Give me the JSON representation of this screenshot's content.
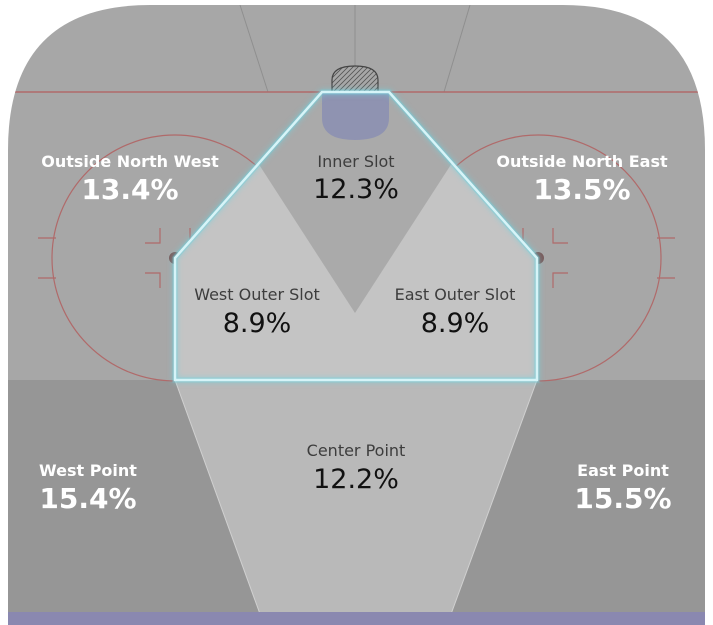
{
  "zones": {
    "outside_north_west": {
      "label": "Outside North West",
      "value": "13.4%"
    },
    "inner_slot": {
      "label": "Inner Slot",
      "value": "12.3%"
    },
    "outside_north_east": {
      "label": "Outside North East",
      "value": "13.5%"
    },
    "west_outer_slot": {
      "label": "West Outer Slot",
      "value": "8.9%"
    },
    "east_outer_slot": {
      "label": "East Outer Slot",
      "value": "8.9%"
    },
    "center_point": {
      "label": "Center Point",
      "value": "12.2%"
    },
    "west_point": {
      "label": "West Point",
      "value": "15.4%"
    },
    "east_point": {
      "label": "East Point",
      "value": "15.5%"
    }
  },
  "colors": {
    "rink_upper": "#a7a7a7",
    "rink_lower": "#969696",
    "slot_fill": "#c4c4c4",
    "center_fill": "#b9b9b9",
    "slot_outline": "#d6f4f8",
    "slot_glow": "#6fd3e0",
    "red_lines": "#b06a6a",
    "blue_line": "#8a88b0",
    "crease": "#8b8fb3"
  }
}
